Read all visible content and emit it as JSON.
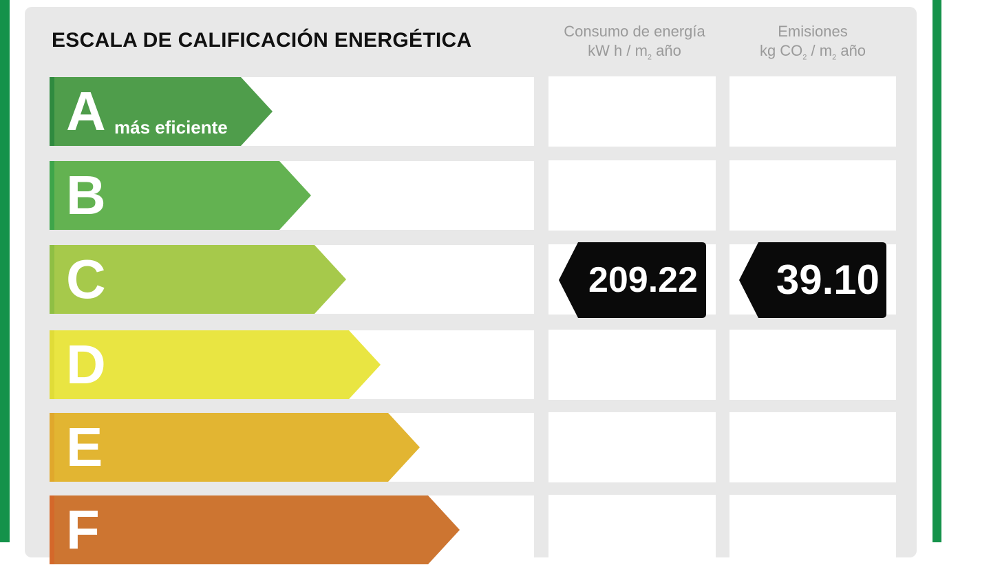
{
  "title": "ESCALA DE CALIFICACIÓN ENERGÉTICA",
  "columns": [
    {
      "line1": "Consumo de energía",
      "line2_pre": "kW h / m",
      "line2_sub": "2",
      "line2_post": " año"
    },
    {
      "line1": "Emisiones",
      "line2_pre": "kg CO",
      "line2_sub": "2",
      "line2_mid": " / m",
      "line2_sub2": "2",
      "line2_post": " año"
    }
  ],
  "ratings": [
    {
      "letter": "A",
      "sublabel": "más eficiente",
      "color": "#4f9d4b",
      "strip": "#2f8a3f"
    },
    {
      "letter": "B",
      "sublabel": "",
      "color": "#63b251",
      "strip": "#3ea54a"
    },
    {
      "letter": "C",
      "sublabel": "",
      "color": "#a6c94b",
      "strip": "#8fbf44"
    },
    {
      "letter": "D",
      "sublabel": "",
      "color": "#e9e542",
      "strip": "#e0dc38"
    },
    {
      "letter": "E",
      "sublabel": "",
      "color": "#e2b532",
      "strip": "#e0a82c"
    },
    {
      "letter": "F",
      "sublabel": "",
      "color": "#cd7531",
      "strip": "#d4682a"
    }
  ],
  "current_rating": "C",
  "consumption_value": "209.22",
  "emissions_value": "39.10",
  "frame_color": "#14924a"
}
